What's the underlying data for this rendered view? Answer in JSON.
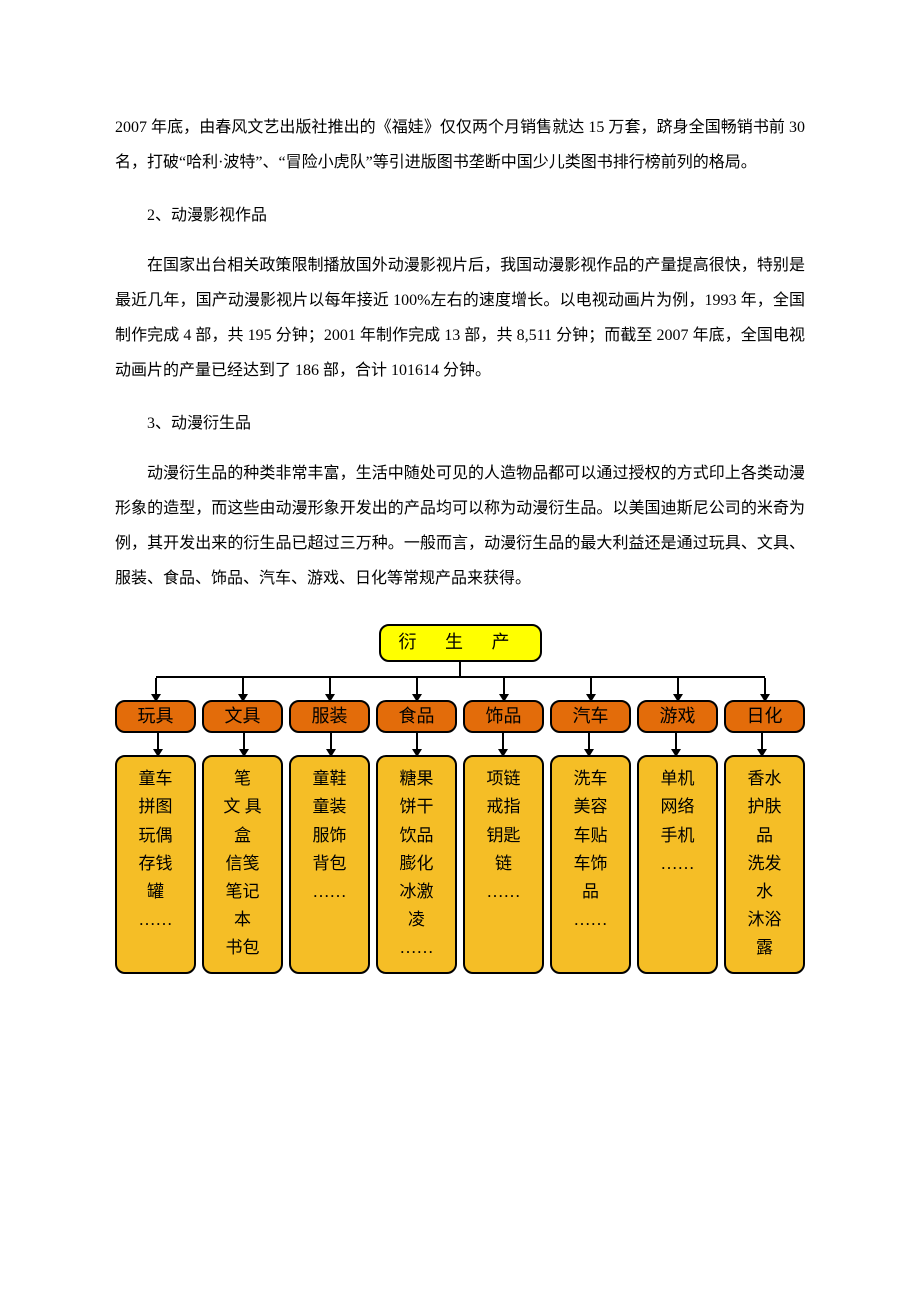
{
  "paragraphs": {
    "p1": "2007 年底，由春风文艺出版社推出的《福娃》仅仅两个月销售就达 15 万套，跻身全国畅销书前 30 名，打破“哈利·波特”、“冒险小虎队”等引进版图书垄断中国少儿类图书排行榜前列的格局。",
    "h2": "2、动漫影视作品",
    "p2": "在国家出台相关政策限制播放国外动漫影视片后，我国动漫影视作品的产量提高很快，特别是最近几年，国产动漫影视片以每年接近 100%左右的速度增长。以电视动画片为例，1993 年，全国制作完成 4 部，共 195 分钟；2001 年制作完成 13 部，共 8,511 分钟；而截至 2007 年底，全国电视动画片的产量已经达到了 186 部，合计 101614 分钟。",
    "h3": "3、动漫衍生品",
    "p3": "动漫衍生品的种类非常丰富，生活中随处可见的人造物品都可以通过授权的方式印上各类动漫形象的造型，而这些由动漫形象开发出的产品均可以称为动漫衍生品。以美国迪斯尼公司的米奇为例，其开发出来的衍生品已超过三万种。一般而言，动漫衍生品的最大利益还是通过玩具、文具、服装、食品、饰品、汽车、游戏、日化等常规产品来获得。"
  },
  "tree": {
    "root_label": "衍 生 产",
    "root_bg": "#ffff00",
    "cat_bg": "#e36c0a",
    "leaf_bg": "#f5be26",
    "border_color": "#000000",
    "categories": [
      "玩具",
      "文具",
      "服装",
      "食品",
      "饰品",
      "汽车",
      "游戏",
      "日化"
    ],
    "leaves": [
      [
        "童车",
        "拼图",
        "玩偶",
        "存钱",
        "罐",
        "……"
      ],
      [
        "笔",
        "文 具",
        "盒",
        "信笺",
        "笔记",
        "本",
        "书包"
      ],
      [
        "童鞋",
        "童装",
        "服饰",
        "背包",
        "……"
      ],
      [
        "糖果",
        "饼干",
        "饮品",
        "膨化",
        "冰激",
        "凌",
        "……"
      ],
      [
        "项链",
        "戒指",
        "钥匙",
        "链",
        "……"
      ],
      [
        "洗车",
        "美容",
        "车贴",
        "车饰",
        "品",
        "……"
      ],
      [
        "单机",
        "网络",
        "手机",
        "……"
      ],
      [
        "香水",
        "护肤",
        "品",
        "洗发",
        "水",
        "沐浴",
        "露"
      ]
    ]
  }
}
